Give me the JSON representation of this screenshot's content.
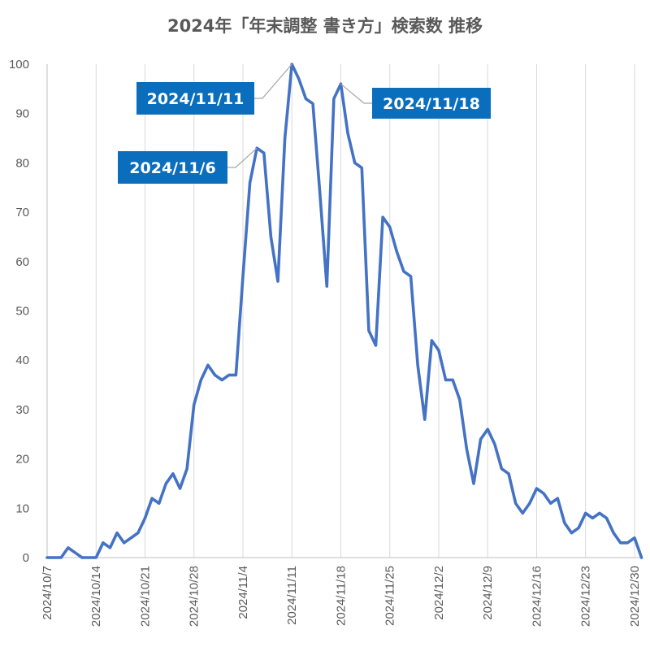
{
  "chart_data": {
    "type": "line",
    "title": "2024年「年末調整 書き方」検索数 推移",
    "xlabel": "",
    "ylabel": "",
    "ylim": [
      0,
      100
    ],
    "yticks": [
      0,
      10,
      20,
      30,
      40,
      50,
      60,
      70,
      80,
      90,
      100
    ],
    "x_start": "2024-10-07",
    "x_end": "2024-12-31",
    "xtick_labels": [
      "2024/10/7",
      "2024/10/14",
      "2024/10/21",
      "2024/10/28",
      "2024/11/4",
      "2024/11/11",
      "2024/11/18",
      "2024/11/25",
      "2024/12/2",
      "2024/12/9",
      "2024/12/16",
      "2024/12/23",
      "2024/12/30"
    ],
    "grid": "vertical",
    "line_color": "#4472C4",
    "series": [
      {
        "x": [
          "2024-10-07",
          "2024-10-08",
          "2024-10-09",
          "2024-10-10",
          "2024-10-11",
          "2024-10-12",
          "2024-10-13",
          "2024-10-14",
          "2024-10-15",
          "2024-10-16",
          "2024-10-17",
          "2024-10-18",
          "2024-10-19",
          "2024-10-20",
          "2024-10-21",
          "2024-10-22",
          "2024-10-23",
          "2024-10-24",
          "2024-10-25",
          "2024-10-26",
          "2024-10-27",
          "2024-10-28",
          "2024-10-29",
          "2024-10-30",
          "2024-10-31",
          "2024-11-01",
          "2024-11-02",
          "2024-11-03",
          "2024-11-04",
          "2024-11-05",
          "2024-11-06",
          "2024-11-07",
          "2024-11-08",
          "2024-11-09",
          "2024-11-10",
          "2024-11-11",
          "2024-11-12",
          "2024-11-13",
          "2024-11-14",
          "2024-11-15",
          "2024-11-16",
          "2024-11-17",
          "2024-11-18",
          "2024-11-19",
          "2024-11-20",
          "2024-11-21",
          "2024-11-22",
          "2024-11-23",
          "2024-11-24",
          "2024-11-25",
          "2024-11-26",
          "2024-11-27",
          "2024-11-28",
          "2024-11-29",
          "2024-11-30",
          "2024-12-01",
          "2024-12-02",
          "2024-12-03",
          "2024-12-04",
          "2024-12-05",
          "2024-12-06",
          "2024-12-07",
          "2024-12-08",
          "2024-12-09",
          "2024-12-10",
          "2024-12-11",
          "2024-12-12",
          "2024-12-13",
          "2024-12-14",
          "2024-12-15",
          "2024-12-16",
          "2024-12-17",
          "2024-12-18",
          "2024-12-19",
          "2024-12-20",
          "2024-12-21",
          "2024-12-22",
          "2024-12-23",
          "2024-12-24",
          "2024-12-25",
          "2024-12-26",
          "2024-12-27",
          "2024-12-28",
          "2024-12-29",
          "2024-12-30",
          "2024-12-31"
        ],
        "y": [
          0,
          0,
          0,
          2,
          1,
          0,
          0,
          0,
          3,
          2,
          5,
          3,
          4,
          5,
          8,
          12,
          11,
          15,
          17,
          14,
          18,
          31,
          36,
          39,
          37,
          36,
          37,
          37,
          57,
          76,
          83,
          82,
          65,
          56,
          85,
          100,
          97,
          93,
          92,
          74,
          55,
          93,
          96,
          86,
          80,
          79,
          46,
          43,
          69,
          67,
          62,
          58,
          57,
          39,
          28,
          44,
          42,
          36,
          36,
          32,
          22,
          15,
          24,
          26,
          23,
          18,
          17,
          11,
          9,
          11,
          14,
          13,
          11,
          12,
          7,
          5,
          6,
          9,
          8,
          9,
          8,
          5,
          3,
          3,
          4,
          0
        ]
      }
    ],
    "annotations": [
      {
        "label": "2024/11/11",
        "x": "2024-11-11",
        "y": 100
      },
      {
        "label": "2024/11/18",
        "x": "2024-11-18",
        "y": 96
      },
      {
        "label": "2024/11/6",
        "x": "2024-11-06",
        "y": 83
      }
    ]
  }
}
